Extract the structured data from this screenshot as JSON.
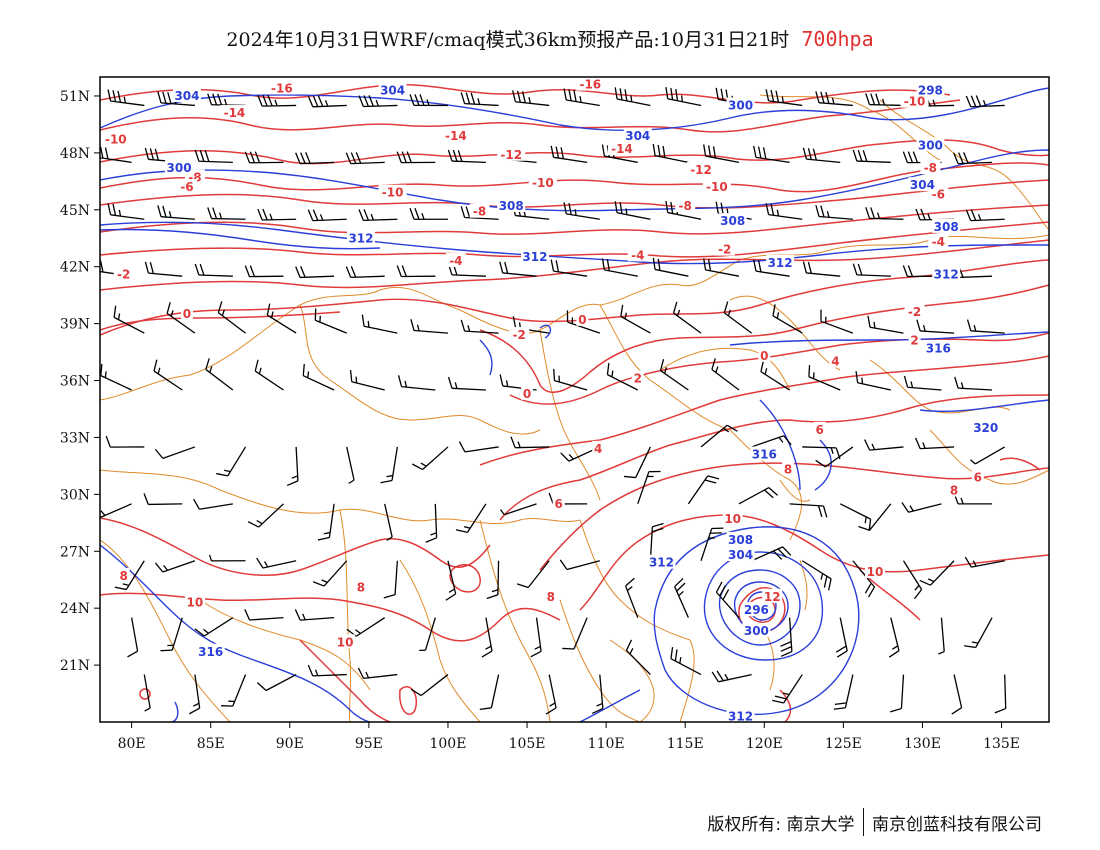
{
  "header": {
    "title": "2024年10月31日WRF/cmaq模式36km预报产品:10月31日21时",
    "level": "700hpa"
  },
  "axes": {
    "lat_labels": [
      "21N",
      "24N",
      "27N",
      "30N",
      "33N",
      "36N",
      "39N",
      "42N",
      "45N",
      "48N",
      "51N"
    ],
    "lon_labels": [
      "80E",
      "85E",
      "90E",
      "95E",
      "100E",
      "105E",
      "110E",
      "115E",
      "120E",
      "125E",
      "130E",
      "135E"
    ]
  },
  "chart_data": {
    "type": "map",
    "projection": "lat-lon",
    "extent": {
      "lon": [
        78,
        138
      ],
      "lat": [
        18,
        52
      ]
    },
    "layers": [
      "temperature contours (red, °C)",
      "geopotential height contours (blue, dagpm)",
      "wind barbs (black)",
      "boundaries (orange)"
    ],
    "colors": {
      "temperature": "#e03a3a",
      "height": "#2a3fd8",
      "wind": "#000000",
      "boundaries": "#e08a2a"
    },
    "temperature_labels": [
      {
        "text": "-16",
        "lon": 89.5,
        "lat": 51.4
      },
      {
        "text": "-16",
        "lon": 109,
        "lat": 51.6
      },
      {
        "text": "-14",
        "lon": 86.5,
        "lat": 50.1
      },
      {
        "text": "-14",
        "lon": 100.5,
        "lat": 48.9
      },
      {
        "text": "-14",
        "lon": 111,
        "lat": 48.2
      },
      {
        "text": "-12",
        "lon": 104,
        "lat": 47.9
      },
      {
        "text": "-12",
        "lon": 116,
        "lat": 47.1
      },
      {
        "text": "-10",
        "lon": 79,
        "lat": 48.7
      },
      {
        "text": "-10",
        "lon": 96.5,
        "lat": 45.9
      },
      {
        "text": "-10",
        "lon": 106,
        "lat": 46.4
      },
      {
        "text": "-10",
        "lon": 117,
        "lat": 46.2
      },
      {
        "text": "-10",
        "lon": 129.5,
        "lat": 50.7
      },
      {
        "text": "-8",
        "lon": 84,
        "lat": 46.7
      },
      {
        "text": "-8",
        "lon": 102,
        "lat": 44.9
      },
      {
        "text": "-8",
        "lon": 115,
        "lat": 45.2
      },
      {
        "text": "-8",
        "lon": 130.5,
        "lat": 47.2
      },
      {
        "text": "-6",
        "lon": 83.5,
        "lat": 46.2
      },
      {
        "text": "-6",
        "lon": 131,
        "lat": 45.8
      },
      {
        "text": "-4",
        "lon": 100.5,
        "lat": 42.3
      },
      {
        "text": "-4",
        "lon": 112,
        "lat": 42.6
      },
      {
        "text": "-4",
        "lon": 131,
        "lat": 43.3
      },
      {
        "text": "-2",
        "lon": 79.5,
        "lat": 41.6
      },
      {
        "text": "-2",
        "lon": 104.5,
        "lat": 38.4
      },
      {
        "text": "-2",
        "lon": 117.5,
        "lat": 42.9
      },
      {
        "text": "-2",
        "lon": 129.5,
        "lat": 39.6
      },
      {
        "text": "0",
        "lon": 83.5,
        "lat": 39.5
      },
      {
        "text": "0",
        "lon": 108.5,
        "lat": 39.2
      },
      {
        "text": "0",
        "lon": 105,
        "lat": 35.3
      },
      {
        "text": "0",
        "lon": 120,
        "lat": 37.3
      },
      {
        "text": "2",
        "lon": 112,
        "lat": 36.1
      },
      {
        "text": "2",
        "lon": 129.5,
        "lat": 38.1
      },
      {
        "text": "4",
        "lon": 109.5,
        "lat": 32.4
      },
      {
        "text": "4",
        "lon": 124.5,
        "lat": 37
      },
      {
        "text": "6",
        "lon": 107,
        "lat": 29.5
      },
      {
        "text": "6",
        "lon": 123.5,
        "lat": 33.4
      },
      {
        "text": "6",
        "lon": 133.5,
        "lat": 30.9
      },
      {
        "text": "8",
        "lon": 121.5,
        "lat": 31.3
      },
      {
        "text": "8",
        "lon": 132,
        "lat": 30.2
      },
      {
        "text": "8",
        "lon": 79.5,
        "lat": 25.7
      },
      {
        "text": "8",
        "lon": 94.5,
        "lat": 25.1
      },
      {
        "text": "8",
        "lon": 106.5,
        "lat": 24.6
      },
      {
        "text": "10",
        "lon": 84,
        "lat": 24.3
      },
      {
        "text": "10",
        "lon": 93.5,
        "lat": 22.2
      },
      {
        "text": "10",
        "lon": 118,
        "lat": 28.7
      },
      {
        "text": "10",
        "lon": 127,
        "lat": 25.9
      },
      {
        "text": "12",
        "lon": 120.5,
        "lat": 24.6
      }
    ],
    "height_labels": [
      {
        "text": "304",
        "lon": 83.5,
        "lat": 51
      },
      {
        "text": "304",
        "lon": 96.5,
        "lat": 51.3
      },
      {
        "text": "304",
        "lon": 112,
        "lat": 48.9
      },
      {
        "text": "300",
        "lon": 118.5,
        "lat": 50.5
      },
      {
        "text": "298",
        "lon": 130.5,
        "lat": 51.3
      },
      {
        "text": "300",
        "lon": 130.5,
        "lat": 48.4
      },
      {
        "text": "304",
        "lon": 130,
        "lat": 46.3
      },
      {
        "text": "300",
        "lon": 83,
        "lat": 47.2
      },
      {
        "text": "308",
        "lon": 104,
        "lat": 45.2
      },
      {
        "text": "308",
        "lon": 118,
        "lat": 44.4
      },
      {
        "text": "308",
        "lon": 131.5,
        "lat": 44.1
      },
      {
        "text": "312",
        "lon": 94.5,
        "lat": 43.5
      },
      {
        "text": "312",
        "lon": 105.5,
        "lat": 42.5
      },
      {
        "text": "312",
        "lon": 121,
        "lat": 42.2
      },
      {
        "text": "312",
        "lon": 131.5,
        "lat": 41.6
      },
      {
        "text": "316",
        "lon": 131,
        "lat": 37.7
      },
      {
        "text": "320",
        "lon": 134,
        "lat": 33.5
      },
      {
        "text": "316",
        "lon": 120,
        "lat": 32.1
      },
      {
        "text": "308",
        "lon": 118.5,
        "lat": 27.6
      },
      {
        "text": "304",
        "lon": 118.5,
        "lat": 26.8
      },
      {
        "text": "312",
        "lon": 113.5,
        "lat": 26.4
      },
      {
        "text": "300",
        "lon": 119.5,
        "lat": 22.8
      },
      {
        "text": "296",
        "lon": 119.5,
        "lat": 23.9
      },
      {
        "text": "316",
        "lon": 85,
        "lat": 21.7
      },
      {
        "text": "312",
        "lon": 118.5,
        "lat": 18.3
      }
    ],
    "typhoon_center": {
      "lon": 119.5,
      "lat": 24
    }
  },
  "footer": {
    "copyright": "版权所有: 南京大学",
    "company": "南京创蓝科技有限公司"
  }
}
